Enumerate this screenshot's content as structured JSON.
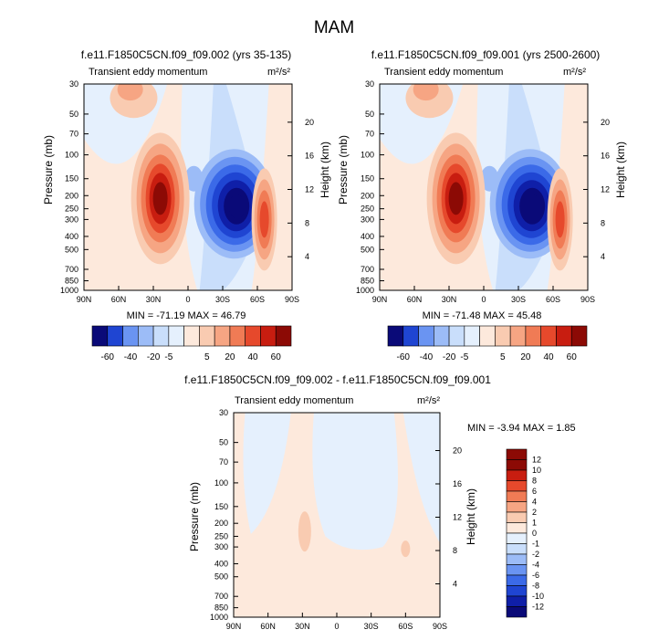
{
  "main_title": "MAM",
  "colors": {
    "frame": "#000000",
    "background": "#ffffff",
    "abs_palette": [
      "#0a0a78",
      "#0f1fa8",
      "#1f45d2",
      "#3b6ae8",
      "#6a94f2",
      "#9cbcf7",
      "#c9defb",
      "#e5f0fd",
      "#fde9dc",
      "#f9cbb1",
      "#f6a583",
      "#f07b55",
      "#e6492c",
      "#c81d10",
      "#8c0a05"
    ],
    "diff_palette": [
      "#0a0a78",
      "#0f1fa8",
      "#1f45d2",
      "#3b6ae8",
      "#6a94f2",
      "#9cbcf7",
      "#c9defb",
      "#e5f0fd",
      "#fde9dc",
      "#f9cbb1",
      "#f6a583",
      "#f07b55",
      "#e6492c",
      "#c81d10",
      "#8c0a05"
    ]
  },
  "panels": [
    {
      "title": "f.e11.F1850C5CN.f09_f09.002 (yrs 35-135)",
      "left_label": "Transient eddy momentum",
      "units": "m²/s²",
      "y_axis_label": "Pressure (mb)",
      "right_axis_label": "Height (km)",
      "min_max_text": "MIN = -71.19  MAX = 46.79"
    },
    {
      "title": "f.e11.F1850C5CN.f09_f09.001 (yrs 2500-2600)",
      "left_label": "Transient eddy momentum",
      "units": "m²/s²",
      "y_axis_label": "Pressure (mb)",
      "right_axis_label": "Height (km)",
      "min_max_text": "MIN = -71.48  MAX = 45.48"
    },
    {
      "title": "f.e11.F1850C5CN.f09_f09.002 - f.e11.F1850C5CN.f09_f09.001",
      "left_label": "Transient eddy momentum",
      "units": "m²/s²",
      "y_axis_label": "Pressure (mb)",
      "right_axis_label": "Height (km)",
      "min_max_text": "MIN =  -3.94  MAX =   1.85"
    }
  ],
  "chart_data": [
    {
      "type": "heatmap",
      "title": "f.e11.F1850C5CN.f09_f09.002 (yrs 35-135)",
      "x_ticks": [
        "90N",
        "60N",
        "30N",
        "0",
        "30S",
        "60S",
        "90S"
      ],
      "x_range": [
        90,
        -90
      ],
      "y_ticks": [
        30,
        50,
        70,
        100,
        150,
        200,
        250,
        300,
        400,
        500,
        700,
        850,
        1000
      ],
      "y_range": [
        1000,
        30
      ],
      "y_scale": "log",
      "right_ticks": [
        4,
        8,
        12,
        16,
        20
      ],
      "contour_levels": [
        -60,
        -40,
        -20,
        -5,
        5,
        20,
        40,
        60
      ],
      "features": [
        {
          "lat": 24,
          "p": 210,
          "value": 46.79,
          "sign": "positive"
        },
        {
          "lat": -40,
          "p": 230,
          "value": -71.19,
          "sign": "negative"
        },
        {
          "lat": -66,
          "p": 300,
          "value": 30,
          "sign": "positive"
        },
        {
          "lat": 45,
          "p": 40,
          "value": 12,
          "sign": "positive"
        }
      ],
      "min": -71.19,
      "max": 46.79
    },
    {
      "type": "heatmap",
      "title": "f.e11.F1850C5CN.f09_f09.001 (yrs 2500-2600)",
      "x_ticks": [
        "90N",
        "60N",
        "30N",
        "0",
        "30S",
        "60S",
        "90S"
      ],
      "x_range": [
        90,
        -90
      ],
      "y_ticks": [
        30,
        50,
        70,
        100,
        150,
        200,
        250,
        300,
        400,
        500,
        700,
        850,
        1000
      ],
      "y_range": [
        1000,
        30
      ],
      "y_scale": "log",
      "right_ticks": [
        4,
        8,
        12,
        16,
        20
      ],
      "contour_levels": [
        -60,
        -40,
        -20,
        -5,
        5,
        20,
        40,
        60
      ],
      "features": [
        {
          "lat": 24,
          "p": 210,
          "value": 45.48,
          "sign": "positive"
        },
        {
          "lat": -40,
          "p": 230,
          "value": -71.48,
          "sign": "negative"
        },
        {
          "lat": -66,
          "p": 300,
          "value": 28,
          "sign": "positive"
        },
        {
          "lat": 45,
          "p": 40,
          "value": 12,
          "sign": "positive"
        }
      ],
      "min": -71.48,
      "max": 45.48
    },
    {
      "type": "heatmap",
      "title": "f.e11.F1850C5CN.f09_f09.002 - f.e11.F1850C5CN.f09_f09.001",
      "x_ticks": [
        "90N",
        "60N",
        "30N",
        "0",
        "30S",
        "60S",
        "90S"
      ],
      "x_range": [
        90,
        -90
      ],
      "y_ticks": [
        30,
        50,
        70,
        100,
        150,
        200,
        250,
        300,
        400,
        500,
        700,
        850,
        1000
      ],
      "y_range": [
        1000,
        30
      ],
      "y_scale": "log",
      "right_ticks": [
        4,
        8,
        12,
        16,
        20
      ],
      "contour_levels": [
        -12,
        -10,
        -8,
        -6,
        -4,
        -2,
        -1,
        0,
        1,
        2,
        4,
        6,
        8,
        10,
        12
      ],
      "features": [
        {
          "lat": 28,
          "p": 230,
          "value": 1.85,
          "sign": "positive"
        },
        {
          "lat": -60,
          "p": 310,
          "value": 1.5,
          "sign": "positive"
        },
        {
          "lat": 0,
          "p": 60,
          "value": -3.94,
          "sign": "negative"
        }
      ],
      "min": -3.94,
      "max": 1.85
    }
  ],
  "colorbars": [
    {
      "orientation": "horizontal",
      "labels": [
        "-60",
        "-40",
        "-20",
        "-5",
        "5",
        "20",
        "40",
        "60"
      ]
    },
    {
      "orientation": "horizontal",
      "labels": [
        "-60",
        "-40",
        "-20",
        "-5",
        "5",
        "20",
        "40",
        "60"
      ]
    },
    {
      "orientation": "vertical",
      "labels": [
        "12",
        "10",
        "8",
        "6",
        "4",
        "2",
        "1",
        "0",
        "-1",
        "-2",
        "-4",
        "-6",
        "-8",
        "-10",
        "-12"
      ]
    }
  ]
}
